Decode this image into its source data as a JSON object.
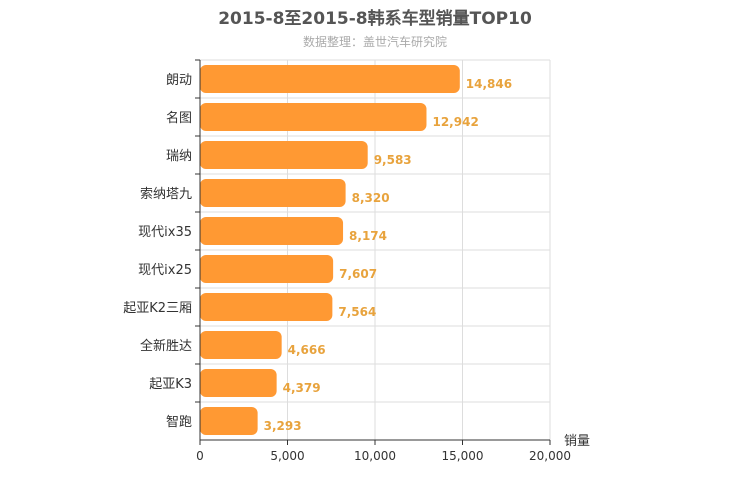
{
  "chart_data": {
    "type": "bar",
    "orientation": "horizontal",
    "title": "2015-8至2015-8韩系车型销量TOP10",
    "subtitle": "数据整理：盖世汽车研究院",
    "xlabel": "销量",
    "ylabel": "",
    "categories": [
      "朗动",
      "名图",
      "瑞纳",
      "索纳塔九",
      "现代ix35",
      "现代ix25",
      "起亚K2三厢",
      "全新胜达",
      "起亚K3",
      "智跑"
    ],
    "values": [
      14846,
      12942,
      9583,
      8320,
      8174,
      7607,
      7564,
      4666,
      4379,
      3293
    ],
    "value_labels": [
      "14,846",
      "12,942",
      "9,583",
      "8,320",
      "8,174",
      "7,607",
      "7,564",
      "4,666",
      "4,379",
      "3,293"
    ],
    "xlim": [
      0,
      20000
    ],
    "ticks": [
      "0",
      "5,000",
      "10,000",
      "15,000",
      "20,000"
    ],
    "grid": true,
    "legend": "none",
    "colors": {
      "bar": "#ff9933",
      "value_label": "#e8a33d",
      "grid": "#dddddd",
      "axis": "#333333"
    }
  }
}
